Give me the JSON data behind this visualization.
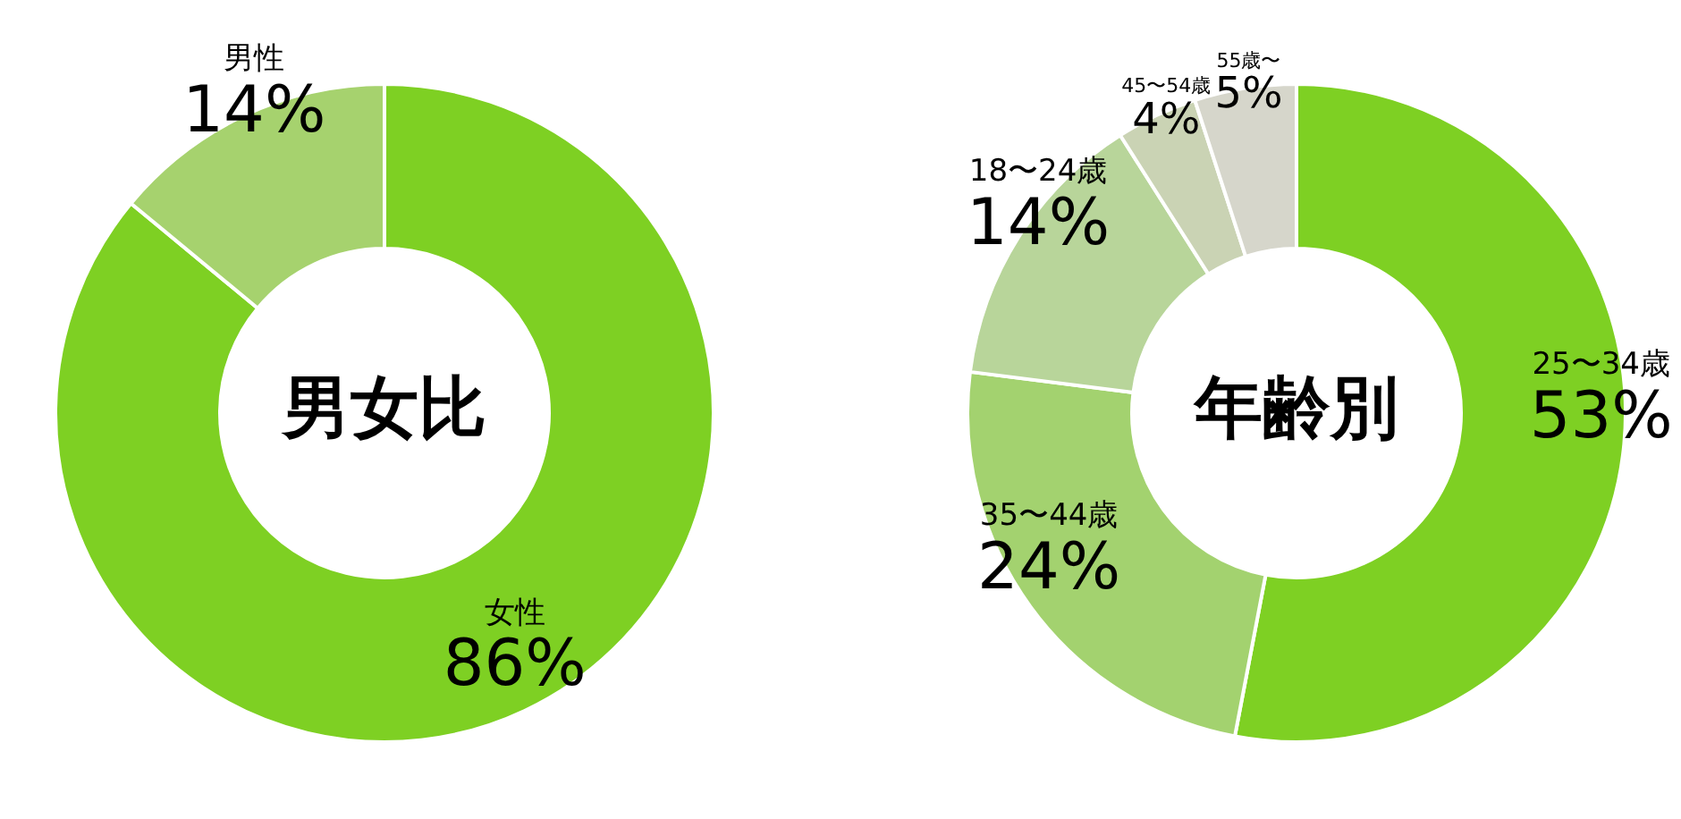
{
  "chart_data": [
    {
      "type": "donut",
      "title": "男女比",
      "categories": [
        "女性",
        "男性"
      ],
      "values": [
        86,
        14
      ],
      "colors": [
        "#7ed023",
        "#a6d26e"
      ],
      "value_labels": [
        "86%",
        "14%"
      ]
    },
    {
      "type": "donut",
      "title": "年齢別",
      "categories": [
        "25〜34歳",
        "35〜44歳",
        "18〜24歳",
        "45〜54歳",
        "55歳〜"
      ],
      "values": [
        53,
        24,
        14,
        4,
        5
      ],
      "colors": [
        "#7ed023",
        "#a3d26f",
        "#b8d59a",
        "#cad3b4",
        "#d6d6cb"
      ],
      "value_labels": [
        "53%",
        "24%",
        "14%",
        "4%",
        "5%"
      ]
    }
  ]
}
